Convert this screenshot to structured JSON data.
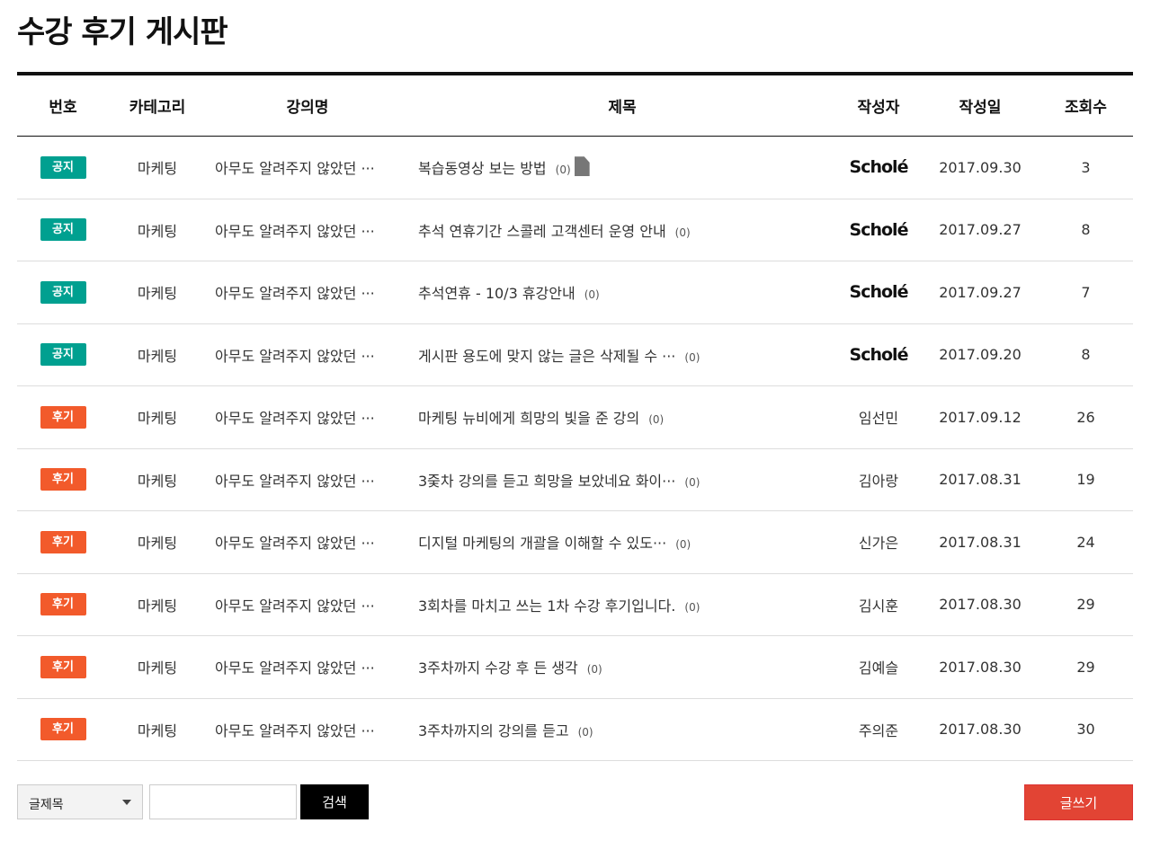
{
  "title": "수강 후기 게시판",
  "colors": {
    "notice": "#00a090",
    "review": "#f25a2b",
    "write": "#e24434"
  },
  "columns": [
    "번호",
    "카테고리",
    "강의명",
    "제목",
    "작성자",
    "작성일",
    "조회수"
  ],
  "rows": [
    {
      "badge": "공지",
      "type": "notice",
      "category": "마케팅",
      "course": "아무도 알려주지 않았던 ···",
      "subject": "복습동영상 보는 방법",
      "comments": "(0)",
      "file": true,
      "author": "Scholé",
      "author_logo": true,
      "date": "2017.09.30",
      "views": "3"
    },
    {
      "badge": "공지",
      "type": "notice",
      "category": "마케팅",
      "course": "아무도 알려주지 않았던 ···",
      "subject": "추석 연휴기간 스콜레 고객센터 운영 안내",
      "comments": "(0)",
      "author": "Scholé",
      "author_logo": true,
      "date": "2017.09.27",
      "views": "8"
    },
    {
      "badge": "공지",
      "type": "notice",
      "category": "마케팅",
      "course": "아무도 알려주지 않았던 ···",
      "subject": "추석연휴 - 10/3 휴강안내",
      "comments": "(0)",
      "author": "Scholé",
      "author_logo": true,
      "date": "2017.09.27",
      "views": "7"
    },
    {
      "badge": "공지",
      "type": "notice",
      "category": "마케팅",
      "course": "아무도 알려주지 않았던 ···",
      "subject": "게시판 용도에 맞지 않는 글은 삭제될 수 ···",
      "comments": "(0)",
      "author": "Scholé",
      "author_logo": true,
      "date": "2017.09.20",
      "views": "8"
    },
    {
      "badge": "후기",
      "type": "review",
      "category": "마케팅",
      "course": "아무도 알려주지 않았던 ···",
      "subject": "마케팅 뉴비에게 희망의 빛을 준 강의",
      "comments": "(0)",
      "author": "임선민",
      "date": "2017.09.12",
      "views": "26"
    },
    {
      "badge": "후기",
      "type": "review",
      "category": "마케팅",
      "course": "아무도 알려주지 않았던 ···",
      "subject": "3줒차 강의를 듣고 희망을 보았네요 화이···",
      "comments": "(0)",
      "author": "김아랑",
      "date": "2017.08.31",
      "views": "19"
    },
    {
      "badge": "후기",
      "type": "review",
      "category": "마케팅",
      "course": "아무도 알려주지 않았던 ···",
      "subject": "디지털 마케팅의 개괄을 이해할 수 있도···",
      "comments": "(0)",
      "author": "신가은",
      "date": "2017.08.31",
      "views": "24"
    },
    {
      "badge": "후기",
      "type": "review",
      "category": "마케팅",
      "course": "아무도 알려주지 않았던 ···",
      "subject": "3회차를 마치고 쓰는 1차 수강 후기입니다.",
      "comments": "(0)",
      "author": "김시훈",
      "date": "2017.08.30",
      "views": "29"
    },
    {
      "badge": "후기",
      "type": "review",
      "category": "마케팅",
      "course": "아무도 알려주지 않았던 ···",
      "subject": "3주차까지 수강 후 든 생각",
      "comments": "(0)",
      "author": "김예슬",
      "date": "2017.08.30",
      "views": "29"
    },
    {
      "badge": "후기",
      "type": "review",
      "category": "마케팅",
      "course": "아무도 알려주지 않았던 ···",
      "subject": "3주차까지의 강의를 듣고",
      "comments": "(0)",
      "author": "주의준",
      "date": "2017.08.30",
      "views": "30"
    }
  ],
  "search": {
    "select_value": "글제목",
    "input_value": "",
    "button": "검색"
  },
  "write_button": "글쓰기"
}
